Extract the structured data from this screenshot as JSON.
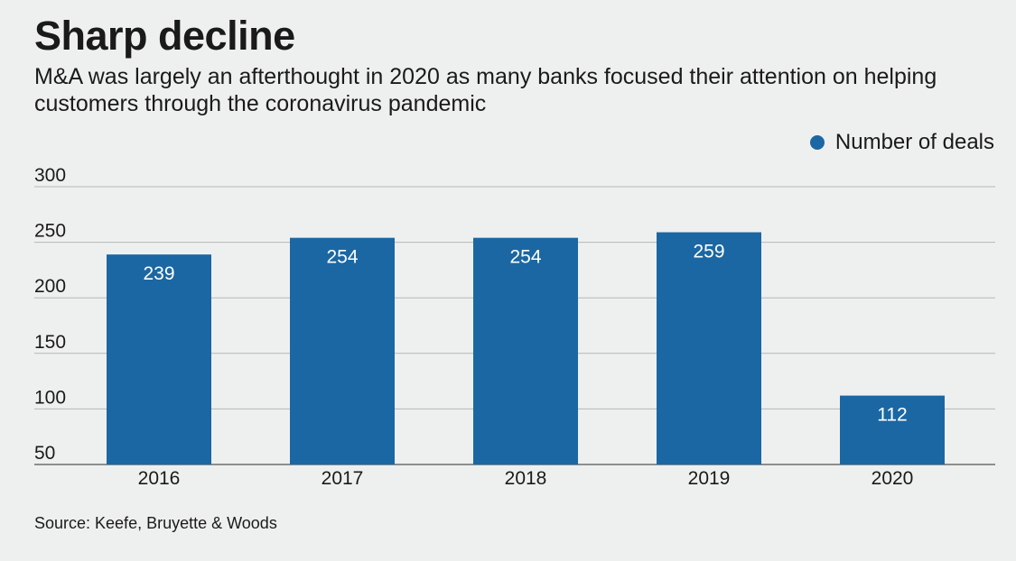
{
  "header": {
    "title": "Sharp decline",
    "subtitle": "M&A was largely an afterthought in 2020 as many banks focused their attention on helping customers through the coronavirus pandemic"
  },
  "legend": {
    "label": "Number of deals"
  },
  "footer": {
    "source": "Source: Keefe, Bruyette & Woods"
  },
  "colors": {
    "bar": "#1b67a3",
    "grid": "#b5b8b7",
    "axis": "#6e6e6e",
    "background": "#eef0ef"
  },
  "chart_data": {
    "type": "bar",
    "categories": [
      "2016",
      "2017",
      "2018",
      "2019",
      "2020"
    ],
    "series": [
      {
        "name": "Number of deals",
        "values": [
          239,
          254,
          254,
          259,
          112
        ]
      }
    ],
    "ylim": [
      50,
      300
    ],
    "yticks": [
      50,
      100,
      150,
      200,
      250,
      300
    ],
    "grid": true,
    "legend_position": "top-right",
    "data_labels": true
  }
}
